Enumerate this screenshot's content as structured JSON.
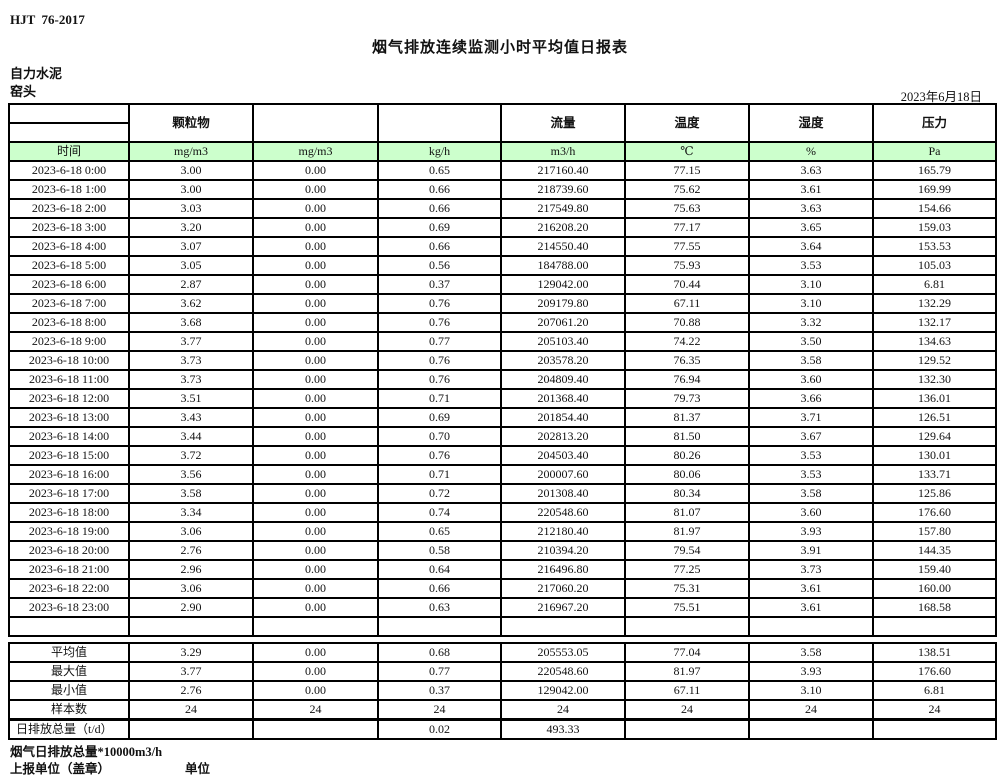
{
  "meta": {
    "standard": "HJT  76-2017",
    "title": "烟气排放连续监测小时平均值日报表",
    "company": "自力水泥",
    "location": "窑头",
    "date": "2023年6月18日"
  },
  "table": {
    "group_headers": [
      "颗粒物",
      "",
      "",
      "流量",
      "温度",
      "湿度",
      "压力"
    ],
    "time_header": "时间",
    "units": [
      "mg/m3",
      "mg/m3",
      "kg/h",
      "m3/h",
      "℃",
      "%",
      "Pa"
    ],
    "rows": [
      {
        "time": "2023-6-18 0:00",
        "values": [
          "3.00",
          "0.00",
          "0.65",
          "217160.40",
          "77.15",
          "3.63",
          "165.79"
        ]
      },
      {
        "time": "2023-6-18 1:00",
        "values": [
          "3.00",
          "0.00",
          "0.66",
          "218739.60",
          "75.62",
          "3.61",
          "169.99"
        ]
      },
      {
        "time": "2023-6-18 2:00",
        "values": [
          "3.03",
          "0.00",
          "0.66",
          "217549.80",
          "75.63",
          "3.63",
          "154.66"
        ]
      },
      {
        "time": "2023-6-18 3:00",
        "values": [
          "3.20",
          "0.00",
          "0.69",
          "216208.20",
          "77.17",
          "3.65",
          "159.03"
        ]
      },
      {
        "time": "2023-6-18 4:00",
        "values": [
          "3.07",
          "0.00",
          "0.66",
          "214550.40",
          "77.55",
          "3.64",
          "153.53"
        ]
      },
      {
        "time": "2023-6-18 5:00",
        "values": [
          "3.05",
          "0.00",
          "0.56",
          "184788.00",
          "75.93",
          "3.53",
          "105.03"
        ]
      },
      {
        "time": "2023-6-18 6:00",
        "values": [
          "2.87",
          "0.00",
          "0.37",
          "129042.00",
          "70.44",
          "3.10",
          "6.81"
        ]
      },
      {
        "time": "2023-6-18 7:00",
        "values": [
          "3.62",
          "0.00",
          "0.76",
          "209179.80",
          "67.11",
          "3.10",
          "132.29"
        ]
      },
      {
        "time": "2023-6-18 8:00",
        "values": [
          "3.68",
          "0.00",
          "0.76",
          "207061.20",
          "70.88",
          "3.32",
          "132.17"
        ]
      },
      {
        "time": "2023-6-18 9:00",
        "values": [
          "3.77",
          "0.00",
          "0.77",
          "205103.40",
          "74.22",
          "3.50",
          "134.63"
        ]
      },
      {
        "time": "2023-6-18 10:00",
        "values": [
          "3.73",
          "0.00",
          "0.76",
          "203578.20",
          "76.35",
          "3.58",
          "129.52"
        ]
      },
      {
        "time": "2023-6-18 11:00",
        "values": [
          "3.73",
          "0.00",
          "0.76",
          "204809.40",
          "76.94",
          "3.60",
          "132.30"
        ]
      },
      {
        "time": "2023-6-18 12:00",
        "values": [
          "3.51",
          "0.00",
          "0.71",
          "201368.40",
          "79.73",
          "3.66",
          "136.01"
        ]
      },
      {
        "time": "2023-6-18 13:00",
        "values": [
          "3.43",
          "0.00",
          "0.69",
          "201854.40",
          "81.37",
          "3.71",
          "126.51"
        ]
      },
      {
        "time": "2023-6-18 14:00",
        "values": [
          "3.44",
          "0.00",
          "0.70",
          "202813.20",
          "81.50",
          "3.67",
          "129.64"
        ]
      },
      {
        "time": "2023-6-18 15:00",
        "values": [
          "3.72",
          "0.00",
          "0.76",
          "204503.40",
          "80.26",
          "3.53",
          "130.01"
        ]
      },
      {
        "time": "2023-6-18 16:00",
        "values": [
          "3.56",
          "0.00",
          "0.71",
          "200007.60",
          "80.06",
          "3.53",
          "133.71"
        ]
      },
      {
        "time": "2023-6-18 17:00",
        "values": [
          "3.58",
          "0.00",
          "0.72",
          "201308.40",
          "80.34",
          "3.58",
          "125.86"
        ]
      },
      {
        "time": "2023-6-18 18:00",
        "values": [
          "3.34",
          "0.00",
          "0.74",
          "220548.60",
          "81.07",
          "3.60",
          "176.60"
        ]
      },
      {
        "time": "2023-6-18 19:00",
        "values": [
          "3.06",
          "0.00",
          "0.65",
          "212180.40",
          "81.97",
          "3.93",
          "157.80"
        ]
      },
      {
        "time": "2023-6-18 20:00",
        "values": [
          "2.76",
          "0.00",
          "0.58",
          "210394.20",
          "79.54",
          "3.91",
          "144.35"
        ]
      },
      {
        "time": "2023-6-18 21:00",
        "values": [
          "2.96",
          "0.00",
          "0.64",
          "216496.80",
          "77.25",
          "3.73",
          "159.40"
        ]
      },
      {
        "time": "2023-6-18 22:00",
        "values": [
          "3.06",
          "0.00",
          "0.66",
          "217060.20",
          "75.31",
          "3.61",
          "160.00"
        ]
      },
      {
        "time": "2023-6-18 23:00",
        "values": [
          "2.90",
          "0.00",
          "0.63",
          "216967.20",
          "75.51",
          "3.61",
          "168.58"
        ]
      }
    ],
    "summary": [
      {
        "label": "平均值",
        "values": [
          "3.29",
          "0.00",
          "0.68",
          "205553.05",
          "77.04",
          "3.58",
          "138.51"
        ]
      },
      {
        "label": "最大值",
        "values": [
          "3.77",
          "0.00",
          "0.77",
          "220548.60",
          "81.97",
          "3.93",
          "176.60"
        ]
      },
      {
        "label": "最小值",
        "values": [
          "2.76",
          "0.00",
          "0.37",
          "129042.00",
          "67.11",
          "3.10",
          "6.81"
        ]
      },
      {
        "label": "样本数",
        "values": [
          "24",
          "24",
          "24",
          "24",
          "24",
          "24",
          "24"
        ]
      },
      {
        "label": "日排放总量（t/d）",
        "values": [
          "",
          "",
          "0.02",
          "493.33",
          "",
          "",
          ""
        ]
      }
    ]
  },
  "footer": {
    "note": "烟气日排放总量*10000m3/h",
    "report_unit": "上报单位（盖章）",
    "unit_label": "单位"
  }
}
